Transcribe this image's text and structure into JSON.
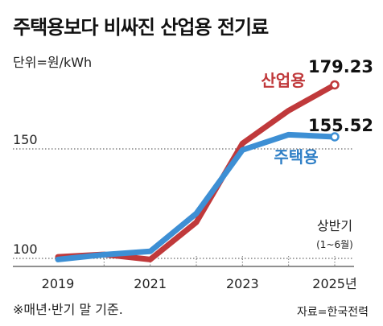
{
  "title": "주택용보다 비싸진 산업용 전기료",
  "unit_label": "단위=원/kWh",
  "note": "※매년·반기 말 기준.",
  "source": "자료=한국전력",
  "chart_data": {
    "type": "line",
    "title": "주택용보다 비싸진 산업용 전기료",
    "ylabel": "단위=원/kWh",
    "x": [
      2019,
      2020,
      2021,
      2022,
      2023,
      2024,
      2024.5,
      2025
    ],
    "x_tick_labels": [
      "2019",
      "2021",
      "2023",
      "2025년"
    ],
    "x_tick_values": [
      2019,
      2021,
      2023,
      2025
    ],
    "y_tick_values": [
      100,
      150
    ],
    "y_tick_labels": [
      "100",
      "150"
    ],
    "ylim": [
      95,
      185
    ],
    "grid": "horizontal dotted",
    "period_annotation": {
      "line1": "상반기",
      "line2": "(1~6월)"
    },
    "series": [
      {
        "name": "산업용",
        "color": "#c0393b",
        "x": [
          2019,
          2020,
          2021,
          2022,
          2023,
          2024,
          2025
        ],
        "values": [
          100.7,
          101.8,
          99.5,
          116.5,
          152.5,
          167.5,
          179.23
        ],
        "end_label": "179.23"
      },
      {
        "name": "주택용",
        "color": "#3d8fd4",
        "x": [
          2019,
          2020,
          2021,
          2022,
          2023,
          2024,
          2025
        ],
        "values": [
          99.5,
          101.7,
          103.2,
          120.5,
          149.5,
          156.5,
          155.52
        ],
        "end_label": "155.52"
      }
    ]
  }
}
